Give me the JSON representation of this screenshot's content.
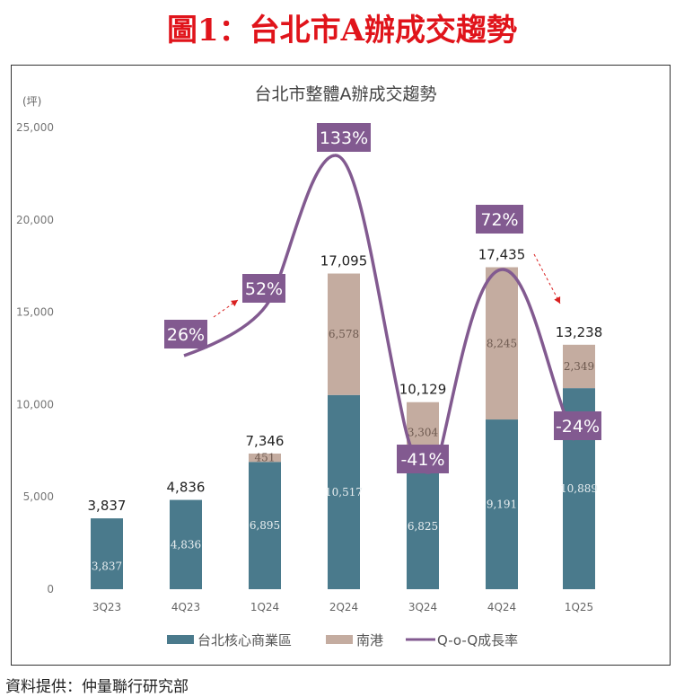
{
  "header": {
    "title": "圖1：台北市A辦成交趨勢"
  },
  "source": "資料提供：仲量聯行研究部",
  "colors": {
    "core": "#4a7a8c",
    "nangang": "#c4aca0",
    "line": "#825a90",
    "arrow": "#d92020"
  },
  "chart_data": {
    "type": "bar",
    "stacked": true,
    "title": "台北市整體A辦成交趨勢",
    "ylabel": "(坪)",
    "ylim": [
      0,
      25000
    ],
    "yticks": [
      "0",
      "5,000",
      "10,000",
      "15,000",
      "20,000",
      "25,000"
    ],
    "categories": [
      "3Q23",
      "4Q23",
      "1Q24",
      "2Q24",
      "3Q24",
      "4Q24",
      "1Q25"
    ],
    "series": [
      {
        "name": "台北核心商業區",
        "values": [
          3837,
          4836,
          6895,
          10517,
          6825,
          9191,
          10889
        ],
        "labels": [
          "3,837",
          "4,836",
          "6,895",
          "10,517",
          "6,825",
          "9,191",
          "10,889"
        ]
      },
      {
        "name": "南港",
        "values": [
          0,
          0,
          451,
          6578,
          3304,
          8245,
          2349
        ],
        "labels": [
          "",
          "",
          "451",
          "6,578",
          "3,304",
          "8,245",
          "2,349"
        ]
      }
    ],
    "totals": [
      "3,837",
      "4,836",
      "7,346",
      "17,095",
      "10,129",
      "17,435",
      "13,238"
    ],
    "line_series": {
      "name": "Q-o-Q成長率",
      "labels": [
        "26%",
        "52%",
        "133%",
        "-41%",
        "72%",
        "-24%"
      ],
      "values": [
        26,
        52,
        133,
        -41,
        72,
        -24
      ]
    },
    "legend": "bottom"
  }
}
